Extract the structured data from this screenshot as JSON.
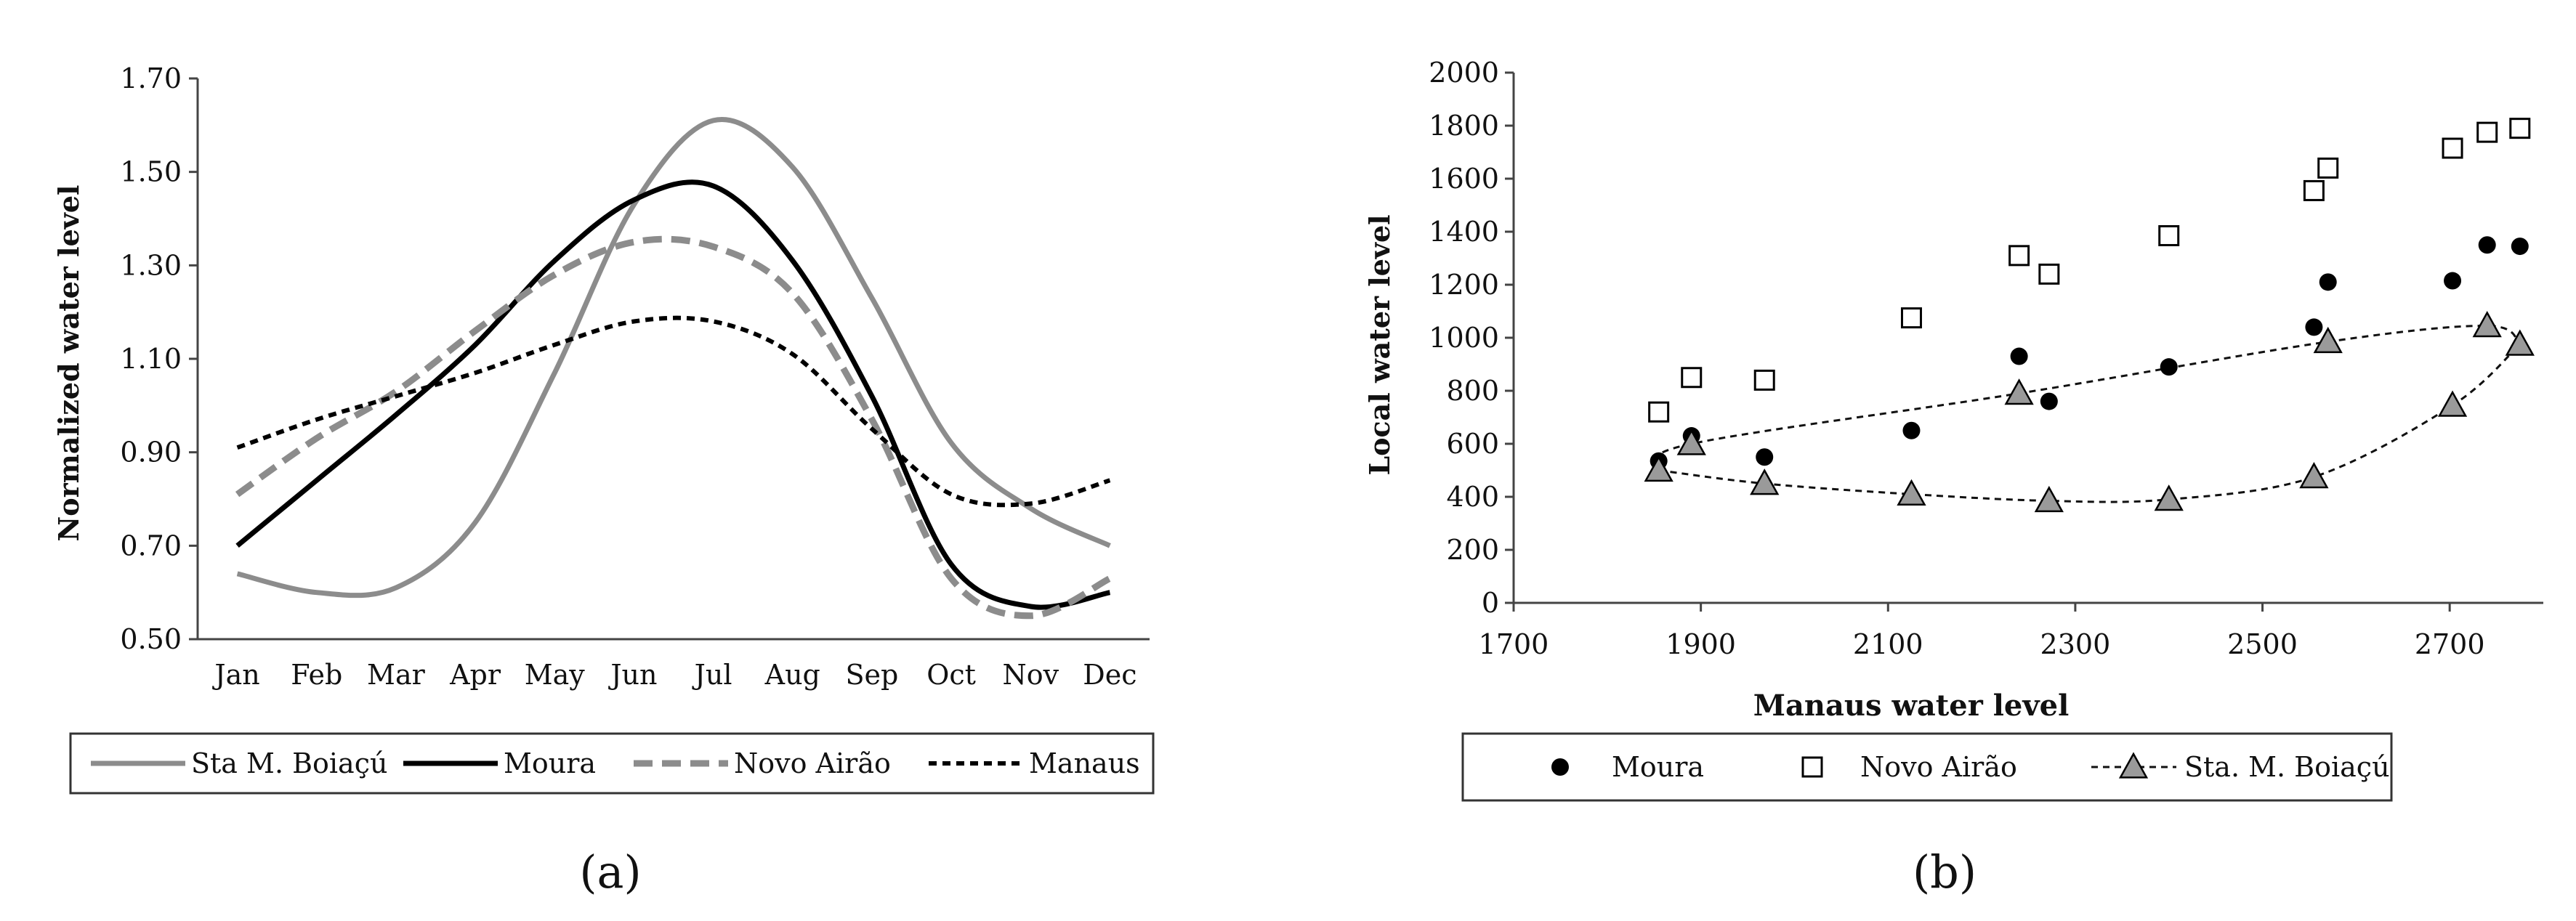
{
  "chart_data": [
    {
      "type": "line",
      "panel_label": "(a)",
      "title": "",
      "xlabel": "",
      "ylabel": "Normalized water level",
      "categories": [
        "Jan",
        "Feb",
        "Mar",
        "Apr",
        "May",
        "Jun",
        "Jul",
        "Aug",
        "Sep",
        "Oct",
        "Nov",
        "Dec"
      ],
      "ylim": [
        0.5,
        1.7
      ],
      "yticks": [
        "0.50",
        "0.70",
        "0.90",
        "1.10",
        "1.30",
        "1.50",
        "1.70"
      ],
      "legend_position": "bottom",
      "series": [
        {
          "name": "Sta M. Boiaçú",
          "color": "#8c8c8c",
          "dash": "solid",
          "values": [
            0.64,
            0.6,
            0.61,
            0.75,
            1.07,
            1.43,
            1.61,
            1.51,
            1.23,
            0.92,
            0.78,
            0.7
          ]
        },
        {
          "name": "Moura",
          "color": "#000000",
          "dash": "solid",
          "values": [
            0.7,
            0.84,
            0.98,
            1.13,
            1.31,
            1.44,
            1.47,
            1.31,
            1.02,
            0.66,
            0.57,
            0.6
          ]
        },
        {
          "name": "Novo Airão",
          "color": "#8c8c8c",
          "dash": "long-dash",
          "values": [
            0.81,
            0.93,
            1.03,
            1.16,
            1.28,
            1.35,
            1.34,
            1.24,
            0.97,
            0.63,
            0.55,
            0.63
          ]
        },
        {
          "name": "Manaus",
          "color": "#000000",
          "dash": "short-dash",
          "values": [
            0.91,
            0.97,
            1.02,
            1.07,
            1.13,
            1.18,
            1.18,
            1.11,
            0.95,
            0.81,
            0.79,
            0.84
          ]
        }
      ]
    },
    {
      "type": "scatter",
      "panel_label": "(b)",
      "title": "",
      "xlabel": "Manaus water level",
      "ylabel": "Local water level",
      "xlim": [
        1700,
        2800
      ],
      "ylim": [
        0,
        2000
      ],
      "xticks": [
        1700,
        1900,
        2100,
        2300,
        2500,
        2700
      ],
      "yticks": [
        0,
        200,
        400,
        600,
        800,
        1000,
        1200,
        1400,
        1600,
        1800,
        2000
      ],
      "legend_position": "bottom",
      "series": [
        {
          "name": "Moura",
          "marker": "filled-circle",
          "points": [
            [
              1855,
              535
            ],
            [
              1890,
              630
            ],
            [
              1968,
              550
            ],
            [
              2125,
              650
            ],
            [
              2240,
              930
            ],
            [
              2272,
              760
            ],
            [
              2400,
              890
            ],
            [
              2555,
              1040
            ],
            [
              2570,
              1210
            ],
            [
              2703,
              1215
            ],
            [
              2740,
              1350
            ],
            [
              2775,
              1345
            ]
          ]
        },
        {
          "name": "Novo Airão",
          "marker": "open-square",
          "points": [
            [
              1855,
              720
            ],
            [
              1890,
              850
            ],
            [
              1968,
              840
            ],
            [
              2125,
              1075
            ],
            [
              2240,
              1310
            ],
            [
              2272,
              1240
            ],
            [
              2400,
              1385
            ],
            [
              2555,
              1555
            ],
            [
              2570,
              1640
            ],
            [
              2703,
              1715
            ],
            [
              2740,
              1775
            ],
            [
              2775,
              1790
            ]
          ]
        },
        {
          "name": "Sta. M. Boiaçú",
          "marker": "grey-triangle",
          "trend": "dashed",
          "points": [
            [
              1855,
              500
            ],
            [
              1890,
              600
            ],
            [
              1968,
              450
            ],
            [
              2125,
              410
            ],
            [
              2240,
              790
            ],
            [
              2272,
              385
            ],
            [
              2400,
              390
            ],
            [
              2555,
              475
            ],
            [
              2570,
              985
            ],
            [
              2703,
              745
            ],
            [
              2740,
              1045
            ],
            [
              2775,
              975
            ]
          ]
        }
      ]
    }
  ]
}
